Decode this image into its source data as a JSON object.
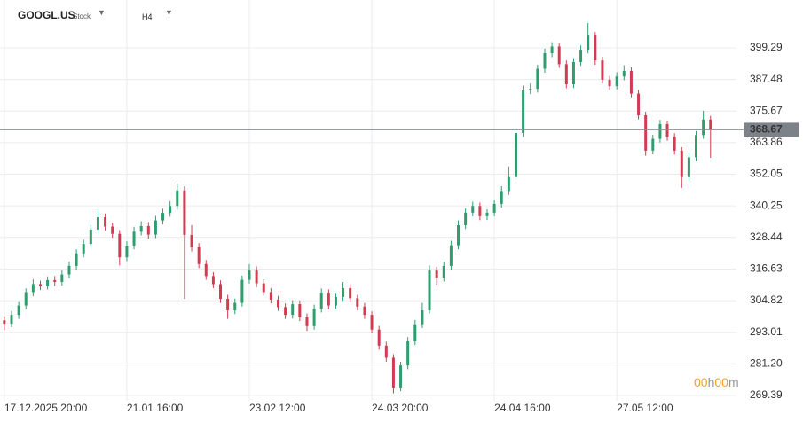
{
  "header": {
    "symbol": "GOOGL.US",
    "instrument_type": "Stock",
    "timeframe": "H4"
  },
  "countdown": {
    "hours": "00",
    "hours_unit": "h",
    "minutes": "00",
    "minutes_unit": "m"
  },
  "chart_data": {
    "type": "candlestick",
    "up_color": "#2f9e6f",
    "down_color": "#d23c52",
    "grid": true,
    "last_price": 368.67,
    "xlim": [
      -0.6,
      101.6
    ],
    "xticks": [
      {
        "value": 0,
        "label": "17.12.2025 20:00"
      },
      {
        "value": 17,
        "label": "21.01 16:00"
      },
      {
        "value": 34,
        "label": "23.02 12:00"
      },
      {
        "value": 51,
        "label": "24.03 20:00"
      },
      {
        "value": 68,
        "label": "24.04 16:00"
      },
      {
        "value": 85,
        "label": "27.05 12:00"
      }
    ],
    "ylim": [
      264.75,
      417.18
    ],
    "yticks": [
      269.39,
      {
        "value": 281.2,
        "label": "281.20"
      },
      293.01,
      304.82,
      316.63,
      328.44,
      340.25,
      352.05,
      363.86,
      375.67,
      387.48,
      399.29
    ],
    "open": [
      297.5,
      296.2,
      299.5,
      303.0,
      308.0,
      311.0,
      310.2,
      312.5,
      311.8,
      314.6,
      317.8,
      322.5,
      326.0,
      331.4,
      336.0,
      332.5,
      329.8,
      321.0,
      325.4,
      330.6,
      332.7,
      329.5,
      334.8,
      337.6,
      340.2,
      346.0,
      329.4,
      324.8,
      318.5,
      314.0,
      311.0,
      305.5,
      301.2,
      304.0,
      312.6,
      316.1,
      311.3,
      308.0,
      305.2,
      302.4,
      299.5,
      303.5,
      298.6,
      295.3,
      301.8,
      307.8,
      303.0,
      306.2,
      309.5,
      305.7,
      302.6,
      299.5,
      294.0,
      288.0,
      283.5,
      272.4,
      280.6,
      289.6,
      296.0,
      301.2,
      316.1,
      313.4,
      317.8,
      325.5,
      333.0,
      337.7,
      340.2,
      336.4,
      337.7,
      341.0,
      345.8,
      351.0,
      367.5,
      383.5,
      384.0,
      391.5,
      397.3,
      399.8,
      393.2,
      385.7,
      394.0,
      398.6,
      403.9,
      394.6,
      387.4,
      385.0,
      388.6,
      390.7,
      382.2,
      374.1,
      360.9,
      365.3,
      370.8,
      366.0,
      360.9,
      351.0,
      358.4,
      366.7,
      372.5
    ],
    "high": [
      299.0,
      301.0,
      304.6,
      309.4,
      312.8,
      312.3,
      313.9,
      314.0,
      316.2,
      319.5,
      324.0,
      327.6,
      333.2,
      339.0,
      337.4,
      334.0,
      331.2,
      327.0,
      332.4,
      334.5,
      334.2,
      336.5,
      339.2,
      342.0,
      348.6,
      347.5,
      333.0,
      326.3,
      320.0,
      315.5,
      312.4,
      307.0,
      305.6,
      314.2,
      318.5,
      317.6,
      312.8,
      309.5,
      306.6,
      303.8,
      305.0,
      304.9,
      300.0,
      303.3,
      309.4,
      309.0,
      307.7,
      311.8,
      310.9,
      307.0,
      304.0,
      300.8,
      295.4,
      289.5,
      284.8,
      282.0,
      291.2,
      297.6,
      304.0,
      318.0,
      317.5,
      319.3,
      327.2,
      334.8,
      339.3,
      341.8,
      341.5,
      339.0,
      342.6,
      347.6,
      355.0,
      369.0,
      385.2,
      386.0,
      393.0,
      399.0,
      401.4,
      401.0,
      394.6,
      395.5,
      400.2,
      408.6,
      405.2,
      396.0,
      388.8,
      390.2,
      392.8,
      392.0,
      383.6,
      375.4,
      366.8,
      372.4,
      372.1,
      367.4,
      362.2,
      360.0,
      368.2,
      375.8,
      373.9
    ],
    "low": [
      293.8,
      294.9,
      298.0,
      301.6,
      306.5,
      308.8,
      309.0,
      310.3,
      310.5,
      313.2,
      316.4,
      321.0,
      324.6,
      330.0,
      331.0,
      328.3,
      318.0,
      319.6,
      324.0,
      329.2,
      328.0,
      328.2,
      333.3,
      336.2,
      338.8,
      305.5,
      323.2,
      317.0,
      312.6,
      309.5,
      304.0,
      298.0,
      299.8,
      302.6,
      311.2,
      309.8,
      306.6,
      303.8,
      301.0,
      298.0,
      298.1,
      297.2,
      293.5,
      294.0,
      300.4,
      301.6,
      301.8,
      304.8,
      304.3,
      301.2,
      298.0,
      292.6,
      286.5,
      282.0,
      270.2,
      271.0,
      279.2,
      288.2,
      294.6,
      300.0,
      310.8,
      312.0,
      316.4,
      324.0,
      331.6,
      336.3,
      334.9,
      335.0,
      336.3,
      339.6,
      344.4,
      349.8,
      366.0,
      382.0,
      382.6,
      390.0,
      395.8,
      391.8,
      384.2,
      384.3,
      392.6,
      397.2,
      393.0,
      386.0,
      383.6,
      383.8,
      387.2,
      380.8,
      372.6,
      359.0,
      359.5,
      363.9,
      364.6,
      359.4,
      347.0,
      349.6,
      357.0,
      365.3,
      358.2
    ],
    "close": [
      296.2,
      299.5,
      303.0,
      308.0,
      311.0,
      310.2,
      312.5,
      311.8,
      314.6,
      317.8,
      322.5,
      326.0,
      331.4,
      336.0,
      332.5,
      329.8,
      321.0,
      325.4,
      330.6,
      332.7,
      329.5,
      334.8,
      337.6,
      340.2,
      346.0,
      329.4,
      324.8,
      318.5,
      314.0,
      311.0,
      305.5,
      301.2,
      304.0,
      312.6,
      316.1,
      311.3,
      308.0,
      305.2,
      302.4,
      299.5,
      303.5,
      298.6,
      295.3,
      301.8,
      307.8,
      303.0,
      306.2,
      309.5,
      305.7,
      302.6,
      299.5,
      294.0,
      288.0,
      283.5,
      272.4,
      280.6,
      289.6,
      296.0,
      301.2,
      316.1,
      313.4,
      317.8,
      325.5,
      333.0,
      337.7,
      340.2,
      336.4,
      337.7,
      341.0,
      345.8,
      351.0,
      367.5,
      383.5,
      384.0,
      391.5,
      397.3,
      399.8,
      393.2,
      385.7,
      394.0,
      398.6,
      403.9,
      394.6,
      387.4,
      385.0,
      388.6,
      390.7,
      382.2,
      374.1,
      360.9,
      365.3,
      370.8,
      366.0,
      360.9,
      351.0,
      358.4,
      366.7,
      372.5,
      368.67
    ]
  }
}
